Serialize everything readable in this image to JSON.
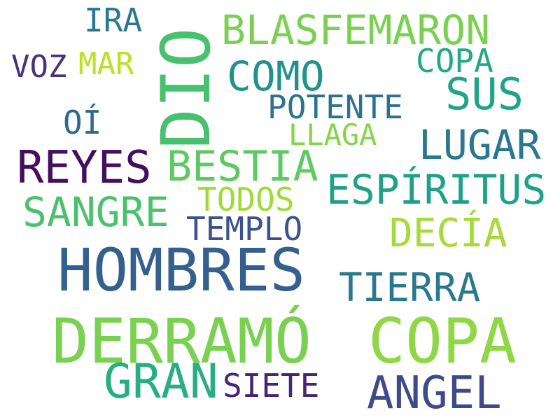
{
  "words": {
    "ira": {
      "text": "IRA",
      "color": "#2a788e"
    },
    "dio": {
      "text": "DIO",
      "color": "#48c16e"
    },
    "blasfemaron": {
      "text": "BLASFEMARON",
      "color": "#7ad151"
    },
    "voz": {
      "text": "VOZ",
      "color": "#46327e"
    },
    "mar": {
      "text": "MAR",
      "color": "#bddf26"
    },
    "como": {
      "text": "COMO",
      "color": "#21918c"
    },
    "copa_small": {
      "text": "COPA",
      "color": "#22a884"
    },
    "sus": {
      "text": "SUS",
      "color": "#20a486"
    },
    "potente": {
      "text": "POTENTE",
      "color": "#2c728e"
    },
    "oi": {
      "text": "OÍ",
      "color": "#31688e"
    },
    "llaga": {
      "text": "LLAGA",
      "color": "#86d549"
    },
    "lugar": {
      "text": "LUGAR",
      "color": "#2a788e"
    },
    "reyes": {
      "text": "REYES",
      "color": "#440f5e"
    },
    "bestia": {
      "text": "BESTIA",
      "color": "#5ec962"
    },
    "espiritus": {
      "text": "ESPÍRITUS",
      "color": "#1fa187"
    },
    "sangre": {
      "text": "SANGRE",
      "color": "#4ac16d"
    },
    "todos": {
      "text": "TODOS",
      "color": "#a0da39"
    },
    "templo": {
      "text": "TEMPLO",
      "color": "#3b528b"
    },
    "decia": {
      "text": "DECÍA",
      "color": "#a5db36"
    },
    "hombres": {
      "text": "HOMBRES",
      "color": "#355f8d"
    },
    "tierra": {
      "text": "TIERRA",
      "color": "#2a788e"
    },
    "derramo": {
      "text": "DERRAMÓ",
      "color": "#7ad151"
    },
    "copa_big": {
      "text": "COPA",
      "color": "#8fd744"
    },
    "gran": {
      "text": "GRAN",
      "color": "#28ae80"
    },
    "siete": {
      "text": "SIETE",
      "color": "#482475"
    },
    "angel": {
      "text": "ANGEL",
      "color": "#3e4a89"
    }
  }
}
